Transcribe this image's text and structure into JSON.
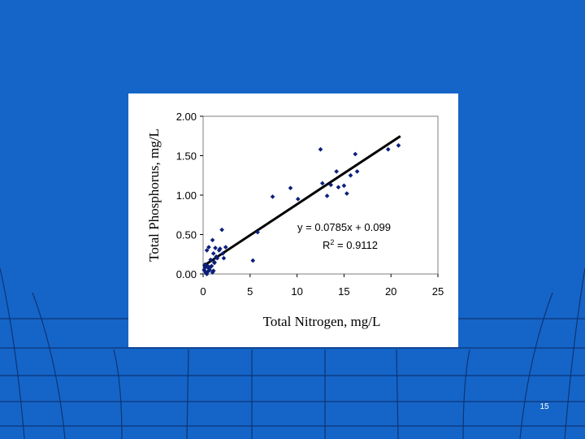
{
  "slide": {
    "number": "15"
  },
  "chart_data": {
    "type": "scatter",
    "xlabel": "Total Nitrogen, mg/L",
    "ylabel": "Total Phosphorus, mg/L",
    "xlim": [
      0,
      25
    ],
    "ylim": [
      0,
      2
    ],
    "x_ticks": [
      "0",
      "5",
      "10",
      "15",
      "20",
      "25"
    ],
    "y_ticks": [
      "0.00",
      "0.50",
      "1.00",
      "1.50",
      "2.00"
    ],
    "grid": false,
    "legend": "none",
    "colors": {
      "points": "#0b1f7a",
      "trendline": "#000000",
      "background": "#1565C8"
    },
    "trendline": {
      "slope": 0.0785,
      "intercept": 0.099,
      "x_range": [
        0,
        21
      ],
      "equation": "y = 0.0785x + 0.099",
      "r2_label": "R",
      "r2_sup": "2",
      "r2_value": " = 0.9112"
    },
    "series": [
      {
        "x": [
          0.1,
          0.2,
          0.3,
          0.4,
          0.5,
          0.6,
          0.8,
          1.0,
          1.1,
          1.2,
          1.3,
          1.4,
          1.5,
          1.7,
          1.8,
          2.0,
          2.1,
          2.2,
          2.4,
          0.3,
          0.5,
          0.7,
          0.9,
          1.0,
          1.2,
          0.2,
          0.4,
          0.6,
          0.8,
          1.1,
          5.3,
          5.8,
          7.4,
          9.3,
          10.1,
          12.5,
          12.7,
          13.2,
          13.6,
          14.2,
          14.4,
          15.0,
          15.3,
          15.7,
          16.2,
          16.4,
          19.7,
          20.8
        ],
        "y": [
          0.05,
          0.08,
          0.02,
          0.3,
          0.1,
          0.34,
          0.18,
          0.43,
          0.26,
          0.14,
          0.33,
          0.22,
          0.2,
          0.3,
          0.32,
          0.56,
          0.26,
          0.2,
          0.34,
          0.01,
          0.03,
          0.05,
          0.1,
          0.02,
          0.15,
          0.12,
          0.0,
          0.07,
          0.09,
          0.04,
          0.17,
          0.53,
          0.98,
          1.09,
          0.95,
          1.58,
          1.15,
          0.99,
          1.13,
          1.3,
          1.1,
          1.12,
          1.02,
          1.25,
          1.52,
          1.3,
          1.58,
          1.63
        ]
      }
    ]
  }
}
